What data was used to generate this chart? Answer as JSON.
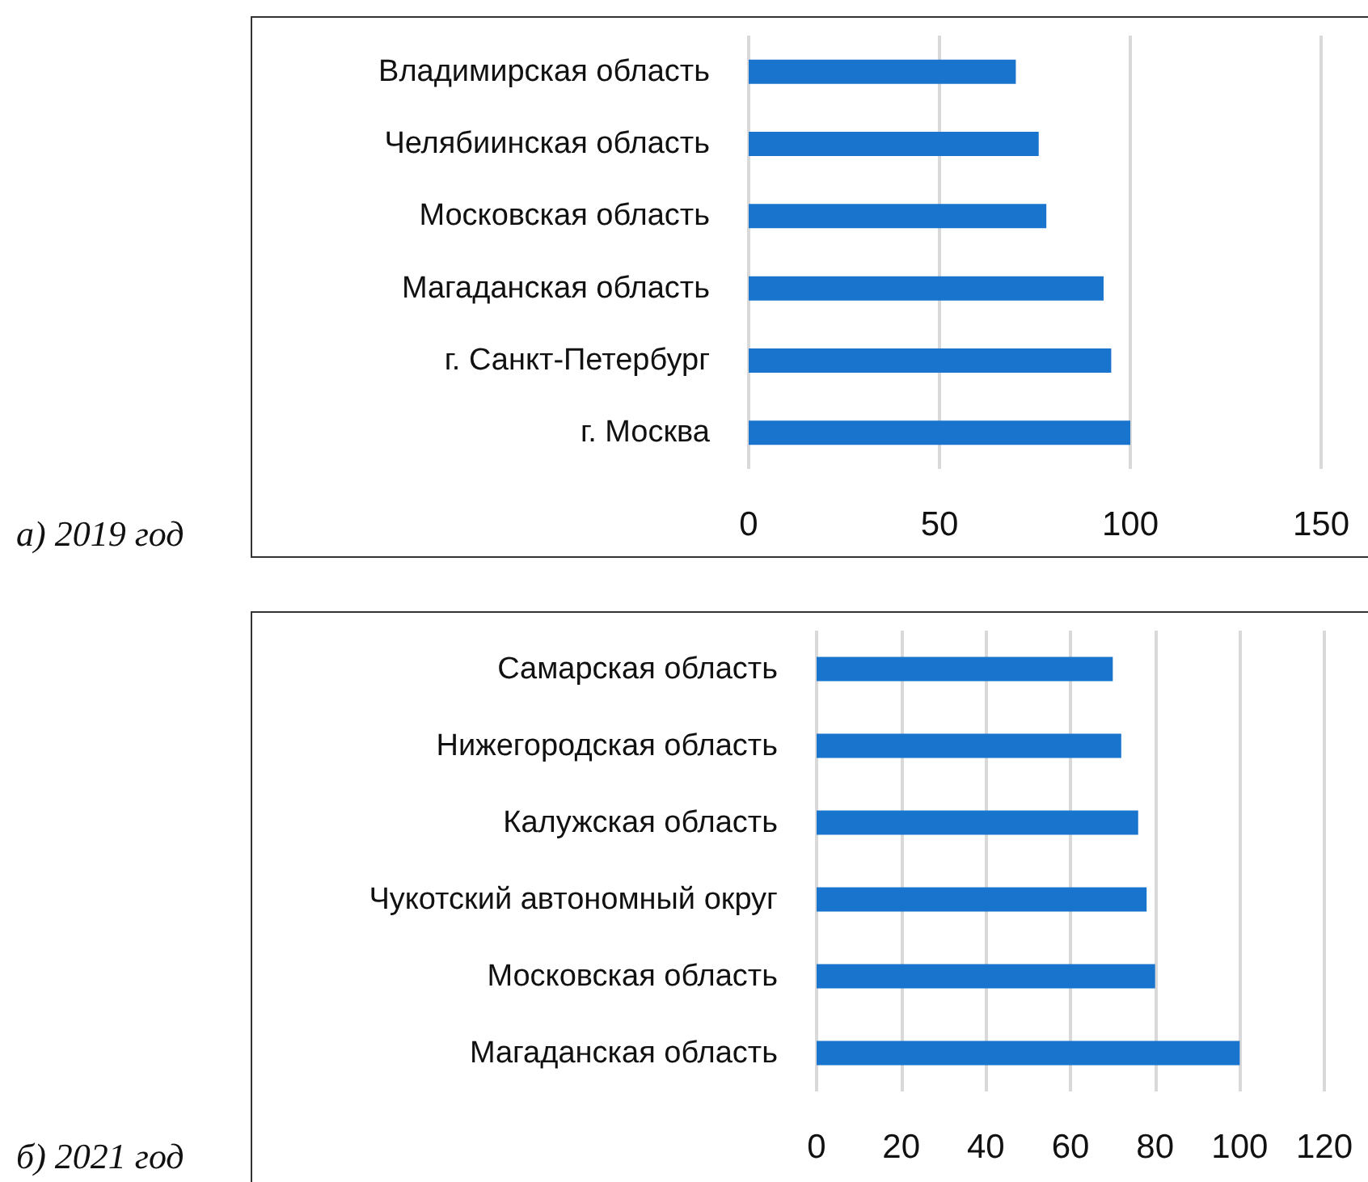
{
  "chart_data": [
    {
      "type": "bar",
      "orientation": "horizontal",
      "title": "а) 2019 год",
      "categories": [
        "Владимирская область",
        "Челябиинская область",
        "Московская область",
        "Магаданская область",
        "г. Санкт-Петербург",
        "г. Москва"
      ],
      "values": [
        70,
        76,
        78,
        93,
        95,
        100
      ],
      "color": "#1874cd",
      "xlim": [
        0,
        150
      ],
      "xticks": [
        0,
        50,
        100,
        150
      ],
      "grid": "x"
    },
    {
      "type": "bar",
      "orientation": "horizontal",
      "title": "б) 2021 год",
      "categories": [
        "Самарская область",
        "Нижегородская область",
        "Калужская область",
        "Чукотский автономный округ",
        "Московская область",
        "Магаданская область"
      ],
      "values": [
        70,
        72,
        76,
        78,
        80,
        100
      ],
      "color": "#1874cd",
      "xlim": [
        0,
        120
      ],
      "xticks": [
        0,
        20,
        40,
        60,
        80,
        100,
        120
      ],
      "grid": "x"
    }
  ]
}
